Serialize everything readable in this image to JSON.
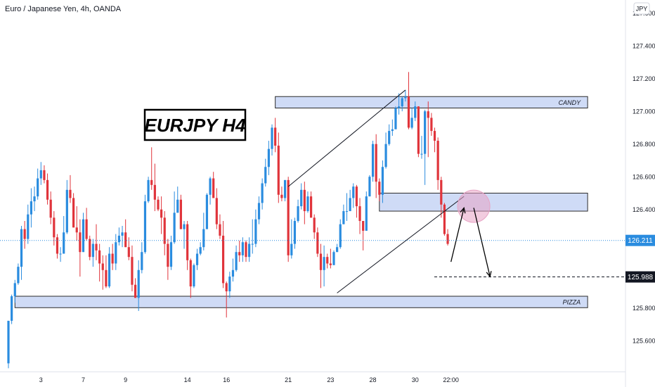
{
  "header": {
    "symbol_title": "Euro / Japanese Yen, 4h, OANDA"
  },
  "currency_badge": "JPY",
  "annotation_title": "EURJPY H4",
  "zones": [
    {
      "label": "CANDY",
      "top": 127.09,
      "bottom": 127.02,
      "start_index": 82,
      "end_index": 178
    },
    {
      "label": "",
      "top": 126.5,
      "bottom": 126.39,
      "start_index": 114,
      "end_index": 178
    },
    {
      "label": "PIZZA",
      "top": 125.87,
      "bottom": 125.8,
      "start_index": 2,
      "end_index": 178
    }
  ],
  "price_labels": {
    "current": "126.211",
    "target": "125.988"
  },
  "colors": {
    "bull": "#2a8cdf",
    "bear": "#e0343b",
    "zone_fill": "#c7d5f5",
    "zone_stroke": "#2b2b2b",
    "current_price": "#2a8cdf",
    "target_line": "#131722",
    "circle": "#e8a3c4"
  },
  "chart_data": {
    "type": "candlestick",
    "title": "Euro / Japanese Yen, 4h, OANDA",
    "timeframe": "4h",
    "x_tick_labels": [
      "3",
      "7",
      "9",
      "14",
      "16",
      "21",
      "23",
      "28",
      "30",
      "22:00"
    ],
    "x_tick_candle_index": [
      10,
      23,
      36,
      55,
      67,
      86,
      99,
      112,
      125,
      136
    ],
    "y_ticks": [
      127.6,
      127.4,
      127.2,
      127.0,
      126.8,
      126.6,
      126.4,
      126.2,
      125.8,
      125.6
    ],
    "ylim": [
      125.41,
      127.68
    ],
    "current_price": 126.211,
    "target_price": 125.988,
    "trendlines": [
      {
        "from": [
          101,
          125.89
        ],
        "to": [
          140,
          126.48
        ]
      },
      {
        "from": [
          86,
          126.54
        ],
        "to": [
          122,
          127.13
        ]
      }
    ],
    "projected_path": [
      {
        "from": [
          136,
          126.08
        ],
        "to": [
          140,
          126.41
        ]
      },
      {
        "from": [
          143,
          126.41
        ],
        "to": [
          148,
          125.99
        ]
      }
    ],
    "circle_center": [
      143,
      126.42
    ],
    "candles": {
      "open": [
        125.46,
        125.72,
        125.87,
        125.95,
        126.05,
        126.28,
        126.22,
        126.37,
        126.45,
        126.48,
        126.59,
        126.64,
        126.58,
        126.46,
        126.35,
        126.23,
        126.13,
        126.13,
        126.26,
        126.52,
        126.47,
        126.29,
        126.26,
        126.14,
        126.34,
        126.22,
        126.11,
        126.19,
        126.15,
        126.07,
        126.03,
        125.93,
        126.13,
        126.07,
        126.2,
        126.24,
        126.26,
        126.17,
        126.11,
        125.94,
        125.86,
        126.03,
        126.14,
        126.45,
        126.58,
        126.55,
        126.46,
        126.4,
        126.35,
        126.19,
        126.05,
        126.2,
        126.38,
        126.46,
        126.28,
        126.31,
        126.09,
        125.93,
        126.06,
        126.13,
        126.17,
        126.28,
        126.49,
        126.59,
        126.47,
        126.31,
        126.24,
        125.95,
        125.9,
        125.99,
        126.03,
        126.14,
        126.12,
        126.2,
        126.11,
        126.19,
        126.19,
        126.34,
        126.44,
        126.56,
        126.66,
        126.77,
        126.9,
        126.79,
        126.49,
        126.47,
        126.58,
        126.12,
        126.19,
        126.33,
        126.42,
        126.52,
        126.39,
        126.48,
        126.35,
        126.26,
        126.13,
        126.03,
        126.11,
        126.07,
        126.06,
        126.14,
        126.17,
        126.31,
        126.39,
        126.39,
        126.47,
        126.54,
        126.42,
        126.33,
        126.27,
        126.48,
        126.6,
        126.8,
        126.57,
        126.49,
        126.66,
        126.8,
        126.88,
        126.89,
        127.02,
        127.03,
        127.08,
        127.09,
        126.9,
        126.96,
        127.03,
        126.74,
        126.74,
        127.0,
        126.96,
        126.88,
        126.82,
        126.58,
        126.43,
        126.25
      ],
      "high": [
        125.72,
        125.88,
        125.97,
        126.07,
        126.3,
        126.33,
        126.43,
        126.53,
        126.54,
        126.65,
        126.69,
        126.67,
        126.62,
        126.51,
        126.39,
        126.25,
        126.17,
        126.36,
        126.58,
        126.61,
        126.5,
        126.42,
        126.34,
        126.38,
        126.41,
        126.24,
        126.22,
        126.31,
        126.19,
        126.12,
        126.12,
        126.17,
        126.19,
        126.25,
        126.29,
        126.3,
        126.34,
        126.23,
        126.18,
        125.98,
        126.09,
        126.2,
        126.49,
        126.6,
        126.78,
        126.68,
        126.48,
        126.48,
        126.39,
        126.22,
        126.24,
        126.51,
        126.54,
        126.49,
        126.33,
        126.33,
        126.1,
        126.07,
        126.16,
        126.2,
        126.38,
        126.5,
        126.6,
        126.63,
        126.53,
        126.37,
        126.33,
        125.96,
        126.02,
        126.1,
        126.18,
        126.21,
        126.23,
        126.21,
        126.23,
        126.34,
        126.4,
        126.48,
        126.59,
        126.71,
        126.82,
        126.92,
        126.96,
        126.87,
        126.54,
        126.58,
        126.6,
        126.34,
        126.35,
        126.46,
        126.56,
        126.57,
        126.51,
        126.51,
        126.37,
        126.29,
        126.19,
        126.18,
        126.13,
        126.16,
        126.15,
        126.19,
        126.34,
        126.43,
        126.5,
        126.52,
        126.56,
        126.55,
        126.47,
        126.33,
        126.51,
        126.61,
        126.82,
        126.86,
        126.59,
        126.7,
        126.87,
        126.92,
        126.95,
        127.03,
        127.11,
        127.09,
        127.13,
        127.24,
        127.02,
        127.06,
        127.03,
        126.85,
        127.01,
        127.06,
        126.99,
        126.9,
        126.84,
        126.6,
        126.44,
        126.28
      ],
      "low": [
        125.43,
        125.7,
        125.83,
        125.94,
        125.97,
        126.16,
        126.19,
        126.29,
        126.39,
        126.46,
        126.55,
        126.56,
        126.43,
        126.31,
        126.18,
        126.1,
        126.08,
        126.13,
        126.25,
        126.44,
        126.29,
        126.21,
        125.99,
        126.14,
        126.21,
        126.09,
        126.05,
        126.09,
        125.96,
        125.91,
        125.92,
        125.92,
        126.03,
        126.03,
        126.18,
        126.17,
        126.17,
        126.09,
        125.9,
        125.86,
        125.78,
        126.01,
        126.13,
        126.44,
        126.52,
        126.39,
        126.39,
        126.25,
        126.12,
        125.97,
        126.03,
        126.19,
        126.38,
        126.28,
        126.16,
        126.03,
        125.86,
        125.92,
        126.03,
        126.12,
        126.15,
        126.28,
        126.43,
        126.47,
        126.28,
        126.22,
        125.92,
        125.74,
        125.86,
        125.96,
        126.02,
        126.08,
        126.08,
        126.08,
        126.08,
        126.13,
        126.17,
        126.31,
        126.4,
        126.54,
        126.61,
        126.73,
        126.75,
        126.44,
        126.45,
        126.45,
        126.08,
        126.1,
        126.16,
        126.32,
        126.4,
        126.31,
        126.38,
        126.35,
        126.22,
        126.11,
        125.92,
        125.93,
        126.04,
        126.04,
        126.06,
        126.14,
        126.16,
        126.31,
        126.33,
        126.39,
        126.41,
        126.35,
        126.25,
        126.15,
        126.27,
        126.48,
        126.57,
        126.47,
        126.45,
        126.44,
        126.65,
        126.79,
        126.85,
        126.9,
        126.98,
        127.0,
        127.06,
        126.89,
        126.89,
        126.94,
        126.72,
        126.71,
        126.55,
        126.72,
        126.85,
        126.75,
        126.52,
        126.35,
        126.24,
        126.18
      ],
      "close": [
        125.72,
        125.87,
        125.95,
        126.05,
        126.28,
        126.22,
        126.37,
        126.45,
        126.48,
        126.59,
        126.64,
        126.58,
        126.46,
        126.35,
        126.23,
        126.13,
        126.13,
        126.26,
        126.52,
        126.47,
        126.29,
        126.26,
        126.14,
        126.34,
        126.22,
        126.11,
        126.19,
        126.15,
        126.07,
        126.03,
        125.93,
        126.13,
        126.07,
        126.2,
        126.24,
        126.26,
        126.17,
        126.11,
        125.94,
        125.86,
        126.03,
        126.14,
        126.45,
        126.58,
        126.55,
        126.46,
        126.4,
        126.35,
        126.19,
        126.05,
        126.2,
        126.38,
        126.46,
        126.28,
        126.31,
        126.09,
        125.93,
        126.06,
        126.13,
        126.17,
        126.28,
        126.49,
        126.59,
        126.47,
        126.31,
        126.24,
        125.95,
        125.9,
        125.99,
        126.03,
        126.14,
        126.12,
        126.2,
        126.11,
        126.19,
        126.19,
        126.34,
        126.44,
        126.56,
        126.66,
        126.77,
        126.9,
        126.79,
        126.49,
        126.47,
        126.58,
        126.12,
        126.19,
        126.33,
        126.42,
        126.52,
        126.39,
        126.48,
        126.35,
        126.26,
        126.13,
        126.03,
        126.11,
        126.07,
        126.06,
        126.14,
        126.17,
        126.31,
        126.39,
        126.39,
        126.47,
        126.54,
        126.42,
        126.33,
        126.27,
        126.48,
        126.6,
        126.8,
        126.57,
        126.49,
        126.66,
        126.8,
        126.88,
        126.89,
        127.02,
        127.03,
        127.08,
        127.09,
        126.9,
        126.96,
        127.03,
        126.74,
        126.74,
        127.0,
        126.96,
        126.88,
        126.82,
        126.58,
        126.43,
        126.25,
        126.19
      ]
    }
  }
}
